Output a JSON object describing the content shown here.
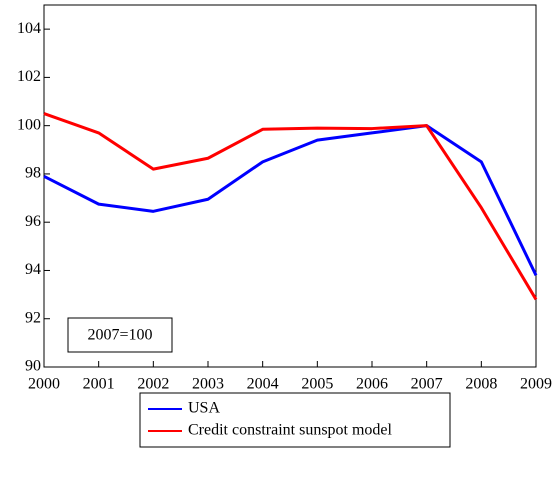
{
  "chart_data": {
    "type": "line",
    "x": [
      2000,
      2001,
      2002,
      2003,
      2004,
      2005,
      2006,
      2007,
      2008,
      2009
    ],
    "series": [
      {
        "name": "USA",
        "color": "#0000ff",
        "values": [
          97.9,
          96.75,
          96.45,
          96.95,
          98.5,
          99.4,
          99.7,
          100,
          98.5,
          93.8
        ]
      },
      {
        "name": "Credit constraint sunspot model",
        "color": "#ff0000",
        "values": [
          100.5,
          99.7,
          98.2,
          98.65,
          99.85,
          99.9,
          99.88,
          100,
          96.6,
          92.8
        ]
      }
    ],
    "xlim": [
      2000,
      2009
    ],
    "xticks": [
      2000,
      2001,
      2002,
      2003,
      2004,
      2005,
      2006,
      2007,
      2008,
      2009
    ],
    "ylim": [
      90,
      105
    ],
    "yticks": [
      90,
      92,
      94,
      96,
      98,
      100,
      102,
      104
    ],
    "annotation": "2007=100",
    "legend": "bottom",
    "grid": false
  }
}
